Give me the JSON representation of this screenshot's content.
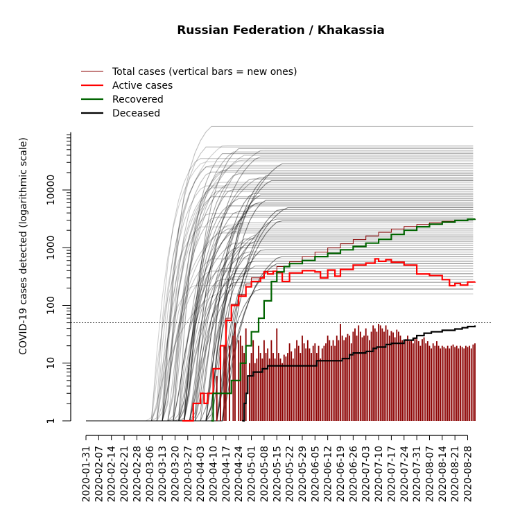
{
  "chart_data": {
    "type": "line",
    "title": "Russian Federation / Khakassia",
    "ylabel": "COVID-19 cases detected (logarithmic scale)",
    "xlabel": "",
    "y_scale": "log",
    "ylim": [
      1,
      100000
    ],
    "y_ticks": [
      1,
      10,
      100,
      1000,
      10000
    ],
    "y_tick_labels": [
      "1",
      "10",
      "100",
      "1000",
      "10000"
    ],
    "xlim": [
      "2020-01-31",
      "2020-09-01"
    ],
    "x_tick_labels": [
      "2020-01-31",
      "2020-02-07",
      "2020-02-14",
      "2020-02-21",
      "2020-02-28",
      "2020-03-06",
      "2020-03-13",
      "2020-03-20",
      "2020-03-27",
      "2020-04-03",
      "2020-04-10",
      "2020-04-17",
      "2020-04-24",
      "2020-05-01",
      "2020-05-08",
      "2020-05-15",
      "2020-05-22",
      "2020-05-29",
      "2020-06-05",
      "2020-06-12",
      "2020-06-19",
      "2020-06-26",
      "2020-07-03",
      "2020-07-10",
      "2020-07-17",
      "2020-07-24",
      "2020-07-31",
      "2020-08-07",
      "2020-08-14",
      "2020-08-21",
      "2020-08-28"
    ],
    "reference_line": 50,
    "legend": {
      "position": "top-left",
      "entries": [
        {
          "label": "Total cases (vertical bars = new ones)",
          "color": "#8b0000"
        },
        {
          "label": "Active cases",
          "color": "#ff0000"
        },
        {
          "label": "Recovered",
          "color": "#006400"
        },
        {
          "label": "Deceased",
          "color": "#000000"
        }
      ]
    },
    "series": [
      {
        "name": "Total cases (vertical bars = new ones)",
        "color": "#8b0000",
        "points": [
          [
            "2020-03-24",
            1
          ],
          [
            "2020-03-30",
            2
          ],
          [
            "2020-04-03",
            3
          ],
          [
            "2020-04-07",
            3
          ],
          [
            "2020-04-10",
            8
          ],
          [
            "2020-04-14",
            20
          ],
          [
            "2020-04-17",
            60
          ],
          [
            "2020-04-20",
            105
          ],
          [
            "2020-04-24",
            155
          ],
          [
            "2020-04-28",
            235
          ],
          [
            "2020-05-01",
            300
          ],
          [
            "2020-05-08",
            390
          ],
          [
            "2020-05-15",
            470
          ],
          [
            "2020-05-22",
            570
          ],
          [
            "2020-05-29",
            700
          ],
          [
            "2020-06-05",
            840
          ],
          [
            "2020-06-12",
            990
          ],
          [
            "2020-06-19",
            1170
          ],
          [
            "2020-06-26",
            1380
          ],
          [
            "2020-07-03",
            1600
          ],
          [
            "2020-07-10",
            1850
          ],
          [
            "2020-07-17",
            2100
          ],
          [
            "2020-07-24",
            2330
          ],
          [
            "2020-07-31",
            2530
          ],
          [
            "2020-08-07",
            2700
          ],
          [
            "2020-08-14",
            2870
          ],
          [
            "2020-08-21",
            3000
          ],
          [
            "2020-08-28",
            3130
          ],
          [
            "2020-09-01",
            3210
          ]
        ]
      },
      {
        "name": "Active cases",
        "color": "#ff0000",
        "points": [
          [
            "2020-03-24",
            1
          ],
          [
            "2020-03-30",
            2
          ],
          [
            "2020-04-03",
            3
          ],
          [
            "2020-04-05",
            2
          ],
          [
            "2020-04-07",
            3
          ],
          [
            "2020-04-10",
            8
          ],
          [
            "2020-04-14",
            20
          ],
          [
            "2020-04-17",
            55
          ],
          [
            "2020-04-20",
            100
          ],
          [
            "2020-04-24",
            145
          ],
          [
            "2020-04-28",
            210
          ],
          [
            "2020-05-01",
            260
          ],
          [
            "2020-05-06",
            300
          ],
          [
            "2020-05-08",
            380
          ],
          [
            "2020-05-10",
            350
          ],
          [
            "2020-05-13",
            390
          ],
          [
            "2020-05-15",
            370
          ],
          [
            "2020-05-18",
            260
          ],
          [
            "2020-05-22",
            365
          ],
          [
            "2020-05-29",
            400
          ],
          [
            "2020-06-05",
            380
          ],
          [
            "2020-06-08",
            300
          ],
          [
            "2020-06-12",
            410
          ],
          [
            "2020-06-16",
            320
          ],
          [
            "2020-06-19",
            420
          ],
          [
            "2020-06-26",
            500
          ],
          [
            "2020-07-03",
            540
          ],
          [
            "2020-07-08",
            640
          ],
          [
            "2020-07-10",
            580
          ],
          [
            "2020-07-14",
            620
          ],
          [
            "2020-07-17",
            560
          ],
          [
            "2020-07-24",
            500
          ],
          [
            "2020-07-31",
            350
          ],
          [
            "2020-08-07",
            330
          ],
          [
            "2020-08-14",
            280
          ],
          [
            "2020-08-18",
            220
          ],
          [
            "2020-08-21",
            240
          ],
          [
            "2020-08-24",
            225
          ],
          [
            "2020-08-28",
            255
          ],
          [
            "2020-09-01",
            258
          ]
        ]
      },
      {
        "name": "Recovered",
        "color": "#006400",
        "points": [
          [
            "2020-04-09",
            1
          ],
          [
            "2020-04-10",
            3
          ],
          [
            "2020-04-19",
            3
          ],
          [
            "2020-04-20",
            5
          ],
          [
            "2020-04-23",
            5
          ],
          [
            "2020-04-25",
            10
          ],
          [
            "2020-04-28",
            20
          ],
          [
            "2020-05-01",
            35
          ],
          [
            "2020-05-05",
            60
          ],
          [
            "2020-05-08",
            120
          ],
          [
            "2020-05-12",
            260
          ],
          [
            "2020-05-15",
            380
          ],
          [
            "2020-05-19",
            470
          ],
          [
            "2020-05-22",
            530
          ],
          [
            "2020-05-29",
            600
          ],
          [
            "2020-06-05",
            700
          ],
          [
            "2020-06-12",
            800
          ],
          [
            "2020-06-19",
            920
          ],
          [
            "2020-06-26",
            1050
          ],
          [
            "2020-07-03",
            1200
          ],
          [
            "2020-07-10",
            1400
          ],
          [
            "2020-07-17",
            1700
          ],
          [
            "2020-07-24",
            2000
          ],
          [
            "2020-07-31",
            2300
          ],
          [
            "2020-08-07",
            2550
          ],
          [
            "2020-08-14",
            2780
          ],
          [
            "2020-08-21",
            2960
          ],
          [
            "2020-08-28",
            3120
          ],
          [
            "2020-09-01",
            3160
          ]
        ]
      },
      {
        "name": "Deceased",
        "color": "#000000",
        "points": [
          [
            "2020-04-26",
            1
          ],
          [
            "2020-04-27",
            2
          ],
          [
            "2020-04-28",
            3
          ],
          [
            "2020-04-29",
            6
          ],
          [
            "2020-05-02",
            7
          ],
          [
            "2020-05-07",
            8
          ],
          [
            "2020-05-10",
            9
          ],
          [
            "2020-06-05",
            9
          ],
          [
            "2020-06-06",
            11
          ],
          [
            "2020-06-20",
            12
          ],
          [
            "2020-06-24",
            14
          ],
          [
            "2020-06-26",
            15
          ],
          [
            "2020-07-03",
            16
          ],
          [
            "2020-07-07",
            18
          ],
          [
            "2020-07-09",
            19
          ],
          [
            "2020-07-14",
            21
          ],
          [
            "2020-07-17",
            22
          ],
          [
            "2020-07-24",
            25
          ],
          [
            "2020-07-29",
            27
          ],
          [
            "2020-07-31",
            30
          ],
          [
            "2020-08-04",
            33
          ],
          [
            "2020-08-08",
            35
          ],
          [
            "2020-08-14",
            37
          ],
          [
            "2020-08-21",
            39
          ],
          [
            "2020-08-25",
            41
          ],
          [
            "2020-08-28",
            43
          ],
          [
            "2020-09-01",
            45
          ]
        ]
      }
    ],
    "new_cases_bars": {
      "color": "#8b0000",
      "points": [
        [
          "2020-04-10",
          4
        ],
        [
          "2020-04-12",
          6
        ],
        [
          "2020-04-14",
          10
        ],
        [
          "2020-04-16",
          20
        ],
        [
          "2020-04-17",
          35
        ],
        [
          "2020-04-19",
          20
        ],
        [
          "2020-04-21",
          30
        ],
        [
          "2020-04-22",
          50
        ],
        [
          "2020-04-24",
          25
        ],
        [
          "2020-04-25",
          30
        ],
        [
          "2020-04-26",
          20
        ],
        [
          "2020-04-27",
          15
        ],
        [
          "2020-04-28",
          40
        ],
        [
          "2020-04-30",
          10
        ],
        [
          "2020-05-01",
          15
        ],
        [
          "2020-05-02",
          25
        ],
        [
          "2020-05-03",
          10
        ],
        [
          "2020-05-04",
          12
        ],
        [
          "2020-05-05",
          20
        ],
        [
          "2020-05-06",
          15
        ],
        [
          "2020-05-07",
          12
        ],
        [
          "2020-05-08",
          25
        ],
        [
          "2020-05-09",
          15
        ],
        [
          "2020-05-10",
          18
        ],
        [
          "2020-05-11",
          12
        ],
        [
          "2020-05-12",
          25
        ],
        [
          "2020-05-13",
          15
        ],
        [
          "2020-05-14",
          12
        ],
        [
          "2020-05-15",
          40
        ],
        [
          "2020-05-16",
          15
        ],
        [
          "2020-05-17",
          12
        ],
        [
          "2020-05-18",
          10
        ],
        [
          "2020-05-19",
          14
        ],
        [
          "2020-05-20",
          13
        ],
        [
          "2020-05-21",
          15
        ],
        [
          "2020-05-22",
          22
        ],
        [
          "2020-05-23",
          16
        ],
        [
          "2020-05-24",
          12
        ],
        [
          "2020-05-25",
          18
        ],
        [
          "2020-05-26",
          25
        ],
        [
          "2020-05-27",
          20
        ],
        [
          "2020-05-28",
          15
        ],
        [
          "2020-05-29",
          30
        ],
        [
          "2020-05-30",
          22
        ],
        [
          "2020-05-31",
          18
        ],
        [
          "2020-06-01",
          25
        ],
        [
          "2020-06-02",
          18
        ],
        [
          "2020-06-03",
          15
        ],
        [
          "2020-06-04",
          20
        ],
        [
          "2020-06-05",
          22
        ],
        [
          "2020-06-06",
          15
        ],
        [
          "2020-06-07",
          20
        ],
        [
          "2020-06-08",
          12
        ],
        [
          "2020-06-09",
          18
        ],
        [
          "2020-06-10",
          20
        ],
        [
          "2020-06-11",
          22
        ],
        [
          "2020-06-12",
          30
        ],
        [
          "2020-06-13",
          25
        ],
        [
          "2020-06-14",
          20
        ],
        [
          "2020-06-15",
          25
        ],
        [
          "2020-06-16",
          20
        ],
        [
          "2020-06-17",
          30
        ],
        [
          "2020-06-18",
          25
        ],
        [
          "2020-06-19",
          48
        ],
        [
          "2020-06-20",
          30
        ],
        [
          "2020-06-21",
          25
        ],
        [
          "2020-06-22",
          28
        ],
        [
          "2020-06-23",
          32
        ],
        [
          "2020-06-24",
          30
        ],
        [
          "2020-06-25",
          22
        ],
        [
          "2020-06-26",
          35
        ],
        [
          "2020-06-27",
          40
        ],
        [
          "2020-06-28",
          30
        ],
        [
          "2020-06-29",
          45
        ],
        [
          "2020-06-30",
          35
        ],
        [
          "2020-07-01",
          28
        ],
        [
          "2020-07-02",
          30
        ],
        [
          "2020-07-03",
          40
        ],
        [
          "2020-07-04",
          30
        ],
        [
          "2020-07-05",
          25
        ],
        [
          "2020-07-06",
          35
        ],
        [
          "2020-07-07",
          45
        ],
        [
          "2020-07-08",
          40
        ],
        [
          "2020-07-09",
          35
        ],
        [
          "2020-07-10",
          48
        ],
        [
          "2020-07-11",
          45
        ],
        [
          "2020-07-12",
          40
        ],
        [
          "2020-07-13",
          35
        ],
        [
          "2020-07-14",
          45
        ],
        [
          "2020-07-15",
          38
        ],
        [
          "2020-07-16",
          30
        ],
        [
          "2020-07-17",
          36
        ],
        [
          "2020-07-18",
          34
        ],
        [
          "2020-07-19",
          28
        ],
        [
          "2020-07-20",
          38
        ],
        [
          "2020-07-21",
          35
        ],
        [
          "2020-07-22",
          30
        ],
        [
          "2020-07-23",
          25
        ],
        [
          "2020-07-24",
          22
        ],
        [
          "2020-07-25",
          26
        ],
        [
          "2020-07-26",
          30
        ],
        [
          "2020-07-27",
          24
        ],
        [
          "2020-07-28",
          25
        ],
        [
          "2020-07-29",
          22
        ],
        [
          "2020-07-30",
          28
        ],
        [
          "2020-07-31",
          26
        ],
        [
          "2020-08-01",
          24
        ],
        [
          "2020-08-02",
          20
        ],
        [
          "2020-08-03",
          26
        ],
        [
          "2020-08-04",
          28
        ],
        [
          "2020-08-05",
          22
        ],
        [
          "2020-08-06",
          24
        ],
        [
          "2020-08-07",
          20
        ],
        [
          "2020-08-08",
          18
        ],
        [
          "2020-08-09",
          22
        ],
        [
          "2020-08-10",
          20
        ],
        [
          "2020-08-11",
          24
        ],
        [
          "2020-08-12",
          20
        ],
        [
          "2020-08-13",
          18
        ],
        [
          "2020-08-14",
          20
        ],
        [
          "2020-08-15",
          19
        ],
        [
          "2020-08-16",
          18
        ],
        [
          "2020-08-17",
          20
        ],
        [
          "2020-08-18",
          18
        ],
        [
          "2020-08-19",
          20
        ],
        [
          "2020-08-20",
          21
        ],
        [
          "2020-08-21",
          19
        ],
        [
          "2020-08-22",
          20
        ],
        [
          "2020-08-23",
          18
        ],
        [
          "2020-08-24",
          20
        ],
        [
          "2020-08-25",
          19
        ],
        [
          "2020-08-26",
          18
        ],
        [
          "2020-08-27",
          20
        ],
        [
          "2020-08-28",
          19
        ],
        [
          "2020-08-29",
          20
        ],
        [
          "2020-08-30",
          18
        ],
        [
          "2020-08-31",
          21
        ],
        [
          "2020-09-01",
          22
        ]
      ]
    }
  }
}
